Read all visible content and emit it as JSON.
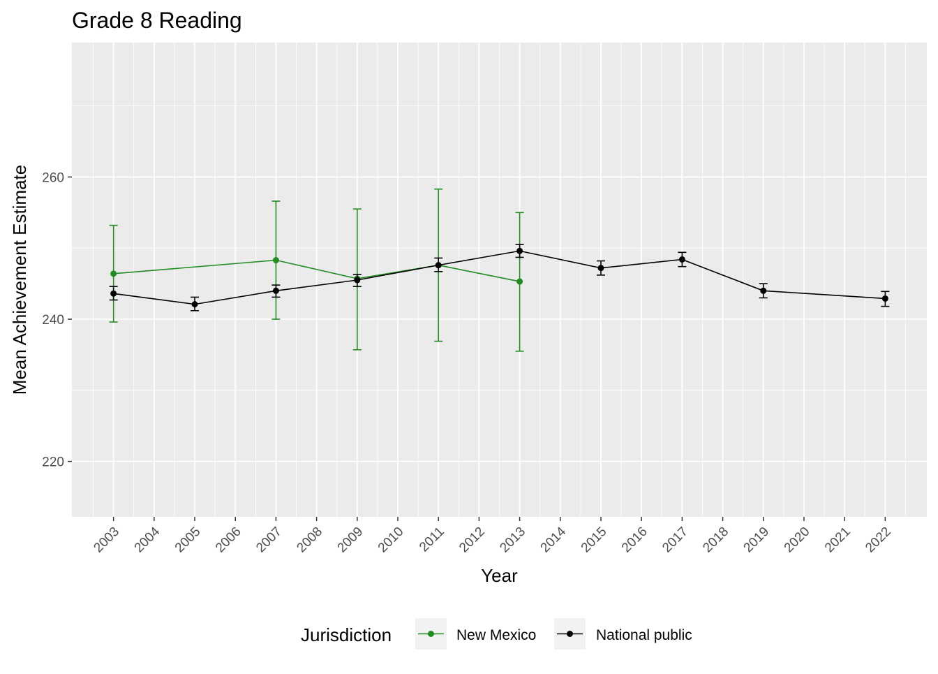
{
  "chart_data": {
    "type": "line",
    "title": "Grade 8 Reading",
    "xlabel": "Year",
    "ylabel": "Mean Achievement Estimate",
    "x_ticks": [
      2003,
      2004,
      2005,
      2006,
      2007,
      2008,
      2009,
      2010,
      2011,
      2012,
      2013,
      2014,
      2015,
      2016,
      2017,
      2018,
      2019,
      2020,
      2021,
      2022
    ],
    "xlim": [
      2001.975,
      2023.025
    ],
    "y_ticks": [
      220,
      240,
      260
    ],
    "ylim": [
      212.2,
      278.9
    ],
    "grid": true,
    "error_bars": true,
    "legend": {
      "title": "Jurisdiction",
      "position": "bottom",
      "entries": [
        "New Mexico",
        "National public"
      ]
    },
    "series": [
      {
        "name": "New Mexico",
        "color": "#228B22",
        "points": [
          {
            "x": 2003,
            "y": 246.4,
            "lo": 239.6,
            "hi": 253.2
          },
          {
            "x": 2007,
            "y": 248.3,
            "lo": 240.0,
            "hi": 256.6
          },
          {
            "x": 2009,
            "y": 245.7,
            "lo": 235.7,
            "hi": 255.5
          },
          {
            "x": 2011,
            "y": 247.6,
            "lo": 236.9,
            "hi": 258.3
          },
          {
            "x": 2013,
            "y": 245.3,
            "lo": 235.5,
            "hi": 255.0
          }
        ]
      },
      {
        "name": "National public",
        "color": "#000000",
        "points": [
          {
            "x": 2003,
            "y": 243.6,
            "lo": 242.7,
            "hi": 244.6
          },
          {
            "x": 2005,
            "y": 242.1,
            "lo": 241.2,
            "hi": 243.1
          },
          {
            "x": 2007,
            "y": 244.0,
            "lo": 243.1,
            "hi": 244.8
          },
          {
            "x": 2009,
            "y": 245.5,
            "lo": 244.6,
            "hi": 246.3
          },
          {
            "x": 2011,
            "y": 247.6,
            "lo": 246.7,
            "hi": 248.6
          },
          {
            "x": 2013,
            "y": 249.6,
            "lo": 248.7,
            "hi": 250.5
          },
          {
            "x": 2015,
            "y": 247.2,
            "lo": 246.2,
            "hi": 248.2
          },
          {
            "x": 2017,
            "y": 248.4,
            "lo": 247.4,
            "hi": 249.4
          },
          {
            "x": 2019,
            "y": 244.0,
            "lo": 243.0,
            "hi": 245.0
          },
          {
            "x": 2022,
            "y": 242.9,
            "lo": 241.8,
            "hi": 243.9
          }
        ]
      }
    ]
  }
}
